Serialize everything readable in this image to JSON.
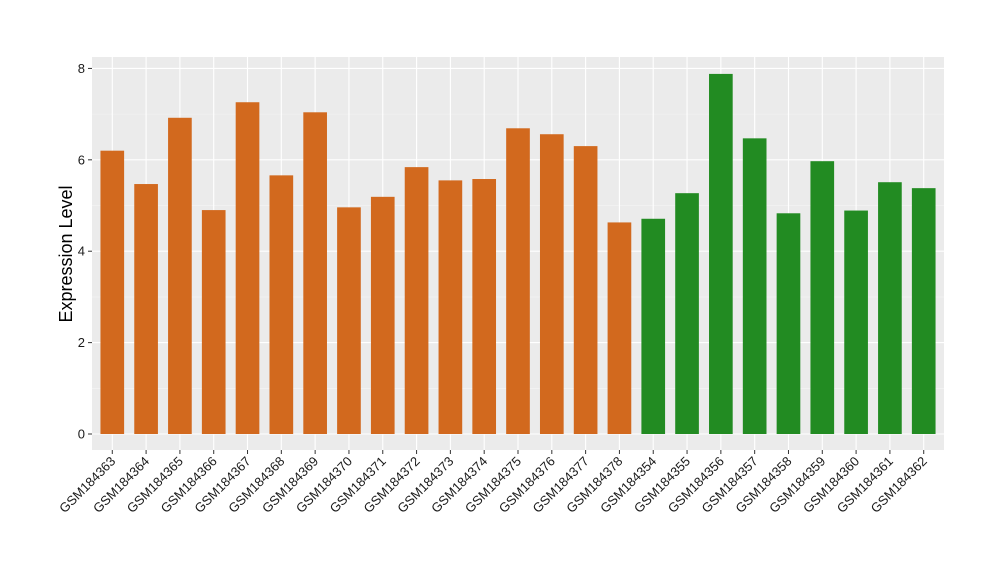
{
  "chart_data": {
    "type": "bar",
    "title": "",
    "xlabel": "",
    "ylabel": "Expression Level",
    "ylim": [
      -0.35,
      8.25
    ],
    "yticks": [
      0,
      2,
      4,
      6,
      8
    ],
    "grid": true,
    "background": "#ebebeb",
    "series": [
      {
        "color": "#d2691e",
        "categories": [
          "GSM184363",
          "GSM184364",
          "GSM184365",
          "GSM184366",
          "GSM184367",
          "GSM184368",
          "GSM184369",
          "GSM184370",
          "GSM184371",
          "GSM184372",
          "GSM184373",
          "GSM184374",
          "GSM184375",
          "GSM184376",
          "GSM184377",
          "GSM184378"
        ],
        "values": [
          6.2,
          5.47,
          6.92,
          4.9,
          7.26,
          5.66,
          7.04,
          4.96,
          5.19,
          5.84,
          5.55,
          5.58,
          6.69,
          6.56,
          6.3,
          4.63
        ]
      },
      {
        "color": "#228b22",
        "categories": [
          "GSM184354",
          "GSM184355",
          "GSM184356",
          "GSM184357",
          "GSM184358",
          "GSM184359",
          "GSM184360",
          "GSM184361",
          "GSM184362"
        ],
        "values": [
          4.71,
          5.27,
          7.88,
          6.47,
          4.83,
          5.97,
          4.89,
          5.51,
          5.38
        ]
      }
    ]
  }
}
